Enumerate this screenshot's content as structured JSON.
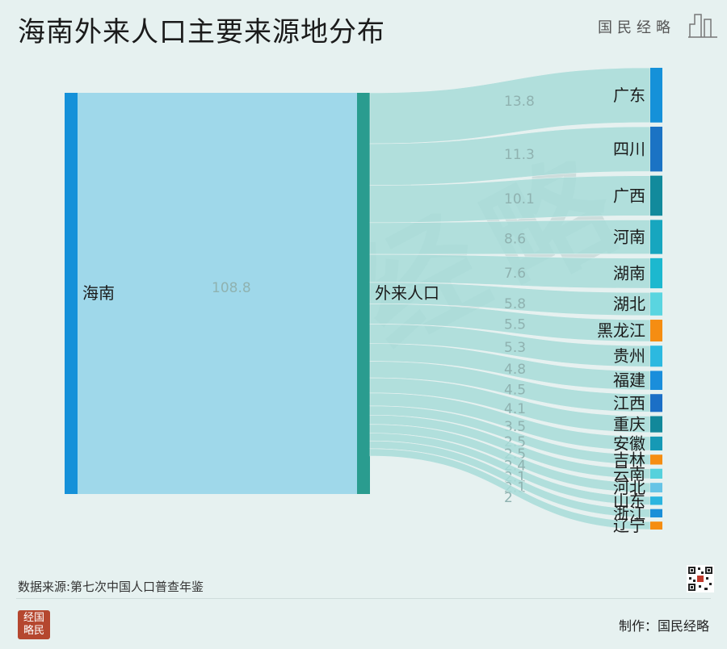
{
  "title": "海南外来人口主要来源地分布",
  "brand": "国民经略",
  "source": "数据来源:第七次中国人口普查年鉴",
  "credit": "制作：国民经略",
  "logo_text": "经国略民",
  "watermark_chars": [
    "国",
    "民",
    "经",
    "略"
  ],
  "colors": {
    "background": "#e6f1f0",
    "hainan_node": "#1591d9",
    "main_flow": "#9fd8ea",
    "wailai_node": "#2a9c8f",
    "branch_flow": "#a7dcd8"
  },
  "chart_data": {
    "type": "sankey",
    "nodes": {
      "source": "海南",
      "middle": "外来人口",
      "total": 108.8
    },
    "targets": [
      {
        "name": "广东",
        "value": 13.8,
        "color": "#1591d9"
      },
      {
        "name": "四川",
        "value": 11.3,
        "color": "#1b73c4"
      },
      {
        "name": "广西",
        "value": 10.1,
        "color": "#128a9c"
      },
      {
        "name": "河南",
        "value": 8.6,
        "color": "#17a6bf"
      },
      {
        "name": "湖南",
        "value": 7.6,
        "color": "#1cb8cf"
      },
      {
        "name": "湖北",
        "value": 5.8,
        "color": "#5ad5e0"
      },
      {
        "name": "黑龙江",
        "value": 5.5,
        "color": "#f58d12"
      },
      {
        "name": "贵州",
        "value": 5.3,
        "color": "#2cb9e0"
      },
      {
        "name": "福建",
        "value": 4.8,
        "color": "#1a8edb"
      },
      {
        "name": "江西",
        "value": 4.5,
        "color": "#1b6fc6"
      },
      {
        "name": "重庆",
        "value": 4.1,
        "color": "#12889a"
      },
      {
        "name": "安徽",
        "value": 3.5,
        "color": "#1699b5"
      },
      {
        "name": "吉林",
        "value": 2.5,
        "color": "#f58d12"
      },
      {
        "name": "云南",
        "value": 2.5,
        "color": "#55d1dc"
      },
      {
        "name": "河北",
        "value": 2.4,
        "color": "#66c4e6"
      },
      {
        "name": "山东",
        "value": 2.1,
        "color": "#2bb5df"
      },
      {
        "name": "浙江",
        "value": 2.1,
        "color": "#1a8fd8"
      },
      {
        "name": "辽宁",
        "value": 2.0,
        "color": "#f58d12"
      }
    ]
  }
}
